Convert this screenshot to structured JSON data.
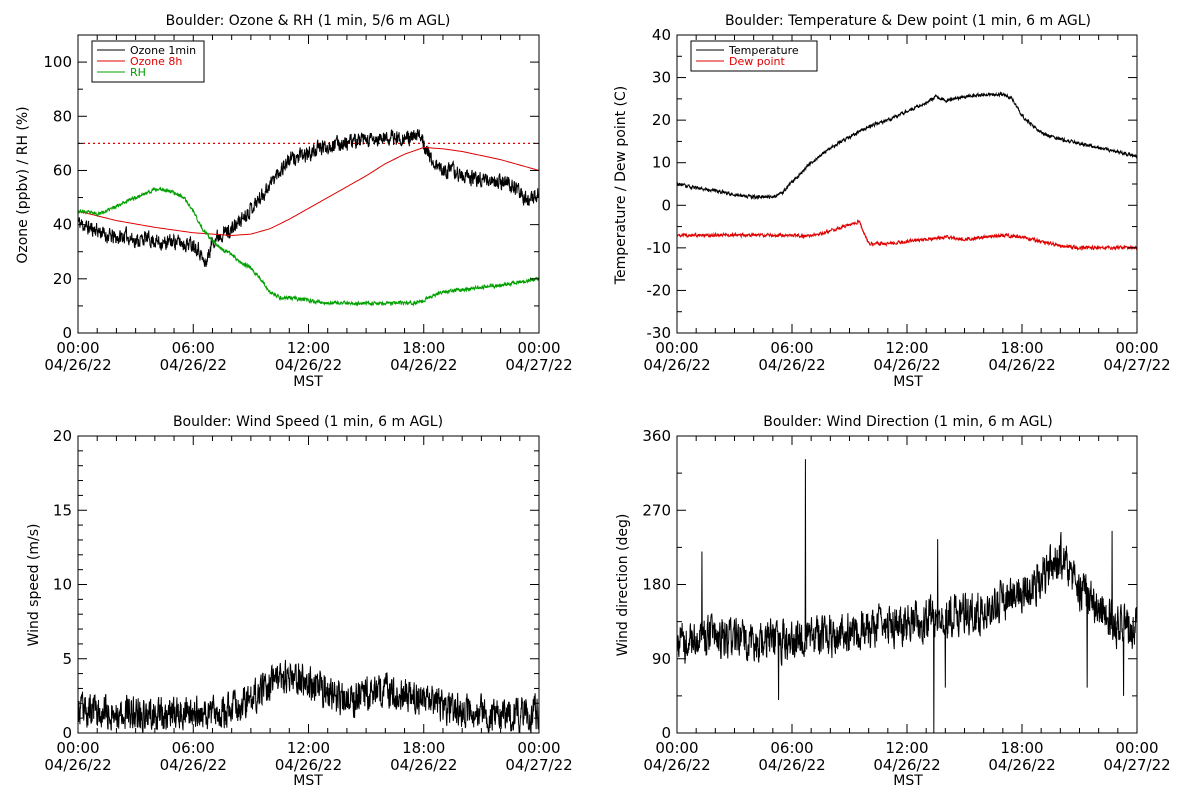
{
  "figure": {
    "xlabel": "MST",
    "x_ticks": [
      {
        "time": "00:00",
        "date": "04/26/22"
      },
      {
        "time": "06:00",
        "date": "04/26/22"
      },
      {
        "time": "12:00",
        "date": "04/26/22"
      },
      {
        "time": "18:00",
        "date": "04/26/22"
      },
      {
        "time": "00:00",
        "date": "04/27/22"
      }
    ]
  },
  "chart_data": [
    {
      "id": "ozone",
      "type": "line",
      "title": "Boulder: Ozone & RH (1 min, 5/6 m AGL)",
      "xlabel": "MST",
      "ylabel": "Ozone (ppbv) / RH (%)",
      "x_unit": "hours since 04/26/22 00:00 MST",
      "xlim": [
        "04/26/22 00:00",
        "04/27/22 00:00"
      ],
      "ylim": [
        0,
        110
      ],
      "yticks": [
        0,
        20,
        40,
        60,
        80,
        100
      ],
      "legend_position": "top-left",
      "reference_lines": [
        {
          "y": 70,
          "color": "#e00000",
          "style": "dotted"
        }
      ],
      "series": [
        {
          "name": "Ozone 1min",
          "color": "#000000",
          "noise": 2.5,
          "seed": 11,
          "x": [
            0,
            0.5,
            1,
            1.5,
            2,
            2.5,
            3,
            3.5,
            4,
            4.5,
            5,
            5.5,
            6,
            6.3,
            6.6,
            6.8,
            7,
            7.5,
            8,
            8.5,
            9,
            9.5,
            10,
            10.5,
            11,
            11.5,
            12,
            12.5,
            13,
            13.5,
            14,
            14.5,
            15,
            15.5,
            16,
            16.5,
            17,
            17.5,
            17.9,
            18.1,
            18.4,
            18.6,
            19,
            19.5,
            20,
            20.5,
            21,
            21.5,
            22,
            22.5,
            23,
            23.5,
            24
          ],
          "y": [
            41,
            39,
            38,
            36,
            35,
            36,
            34,
            35,
            34,
            33,
            34,
            33,
            33,
            31,
            25,
            29,
            34,
            37,
            38,
            42,
            46,
            50,
            55,
            60,
            64,
            65,
            66,
            68,
            69,
            70,
            70,
            71,
            71,
            71,
            72,
            72,
            72,
            72,
            73,
            68,
            64,
            62,
            60,
            60,
            58,
            57,
            57,
            56,
            56,
            55,
            52,
            48,
            52
          ]
        },
        {
          "name": "Ozone 8h",
          "color": "#e00000",
          "noise": 0,
          "seed": 0,
          "x": [
            0,
            2,
            4,
            6,
            8,
            9,
            10,
            11,
            12,
            13,
            14,
            15,
            16,
            17,
            18,
            19,
            20,
            21,
            22,
            23,
            24
          ],
          "y": [
            45,
            41.5,
            39,
            37,
            36,
            36.5,
            38.5,
            42,
            46,
            50,
            54,
            58,
            62.5,
            66,
            68.5,
            68,
            67,
            65.5,
            64,
            62,
            60
          ]
        },
        {
          "name": "RH",
          "color": "#00a000",
          "noise": 0.6,
          "seed": 23,
          "x": [
            0,
            1,
            1.5,
            2,
            3,
            4,
            4.5,
            5,
            5.5,
            6,
            6.5,
            7,
            7.5,
            8,
            8.5,
            9,
            9.5,
            10,
            10.5,
            11,
            12,
            13,
            14,
            15,
            16,
            17,
            17.5,
            18,
            18.5,
            19,
            20,
            21,
            22,
            23,
            24
          ],
          "y": [
            45,
            44,
            45,
            47,
            50,
            53,
            53,
            52,
            50,
            45,
            38,
            34,
            31,
            29,
            26,
            24,
            20,
            15,
            13,
            13,
            12,
            11,
            11,
            11,
            11,
            11,
            11,
            12,
            14,
            15,
            16,
            17,
            17.5,
            19,
            20
          ]
        }
      ]
    },
    {
      "id": "temperature",
      "type": "line",
      "title": "Boulder: Temperature & Dew point (1 min, 6 m AGL)",
      "xlabel": "MST",
      "ylabel": "Temperature / Dew point (C)",
      "x_unit": "hours since 04/26/22 00:00 MST",
      "xlim": [
        "04/26/22 00:00",
        "04/27/22 00:00"
      ],
      "ylim": [
        -30,
        40
      ],
      "yticks": [
        -30,
        -20,
        -10,
        0,
        10,
        20,
        30,
        40
      ],
      "legend_position": "top-left",
      "reference_lines": [],
      "series": [
        {
          "name": "Temperature",
          "color": "#000000",
          "noise": 0.35,
          "seed": 31,
          "x": [
            0,
            1,
            2,
            3,
            4,
            5,
            5.5,
            6,
            7,
            8,
            9,
            10,
            11,
            12,
            13,
            13.5,
            14,
            15,
            16,
            17,
            17.5,
            18,
            19,
            20,
            21,
            22,
            23,
            24
          ],
          "y": [
            5,
            4,
            3.5,
            2.5,
            2,
            2,
            3,
            5.5,
            10,
            13.5,
            16,
            18.5,
            20,
            22,
            24,
            25.5,
            24.5,
            25.5,
            26,
            26,
            25,
            21,
            17,
            15.5,
            14.5,
            13.5,
            12.5,
            11.5
          ]
        },
        {
          "name": "Dew point",
          "color": "#e00000",
          "noise": 0.35,
          "seed": 47,
          "x": [
            0,
            2,
            4,
            6,
            7,
            8,
            9,
            9.5,
            9.7,
            10,
            11,
            12,
            13,
            14,
            15,
            16,
            17,
            18,
            19,
            20,
            21,
            22,
            23,
            24
          ],
          "y": [
            -7,
            -7,
            -7,
            -7,
            -7.2,
            -6,
            -4.5,
            -3.8,
            -6,
            -9,
            -9,
            -8.5,
            -8,
            -7.5,
            -8,
            -7.5,
            -7,
            -7.5,
            -8.5,
            -9.5,
            -10,
            -10,
            -10,
            -10
          ]
        }
      ]
    },
    {
      "id": "wind_speed",
      "type": "line",
      "title": "Boulder: Wind Speed (1 min, 6 m AGL)",
      "xlabel": "MST",
      "ylabel": "Wind speed (m/s)",
      "x_unit": "hours since 04/26/22 00:00 MST",
      "xlim": [
        "04/26/22 00:00",
        "04/27/22 00:00"
      ],
      "ylim": [
        0,
        20
      ],
      "yticks": [
        0,
        5,
        10,
        15,
        20
      ],
      "legend_position": "none",
      "reference_lines": [],
      "series": [
        {
          "name": "",
          "color": "#000000",
          "noise": 1.0,
          "seed": 53,
          "min": 0,
          "x": [
            0,
            2,
            4,
            6,
            8,
            9,
            10,
            11,
            12,
            13,
            14,
            15,
            16,
            17,
            18,
            19,
            20,
            21,
            22,
            23,
            24
          ],
          "y": [
            1.5,
            1.4,
            1.3,
            1.2,
            1.6,
            2.3,
            3.4,
            3.9,
            3.5,
            2.7,
            2.0,
            2.6,
            2.9,
            2.5,
            2.1,
            1.8,
            1.5,
            1.3,
            1.2,
            1.3,
            1.3
          ]
        }
      ]
    },
    {
      "id": "wind_direction",
      "type": "line",
      "title": "Boulder: Wind Direction (1 min, 6 m AGL)",
      "xlabel": "MST",
      "ylabel": "Wind direction (deg)",
      "x_unit": "hours since 04/26/22 00:00 MST",
      "xlim": [
        "04/26/22 00:00",
        "04/27/22 00:00"
      ],
      "ylim": [
        0,
        360
      ],
      "yticks": [
        0,
        90,
        180,
        270,
        360
      ],
      "legend_position": "none",
      "reference_lines": [],
      "series": [
        {
          "name": "",
          "color": "#000000",
          "noise": 22,
          "seed": 71,
          "min": 0,
          "spikes": [
            [
              6.7,
              332
            ],
            [
              13.4,
              0
            ],
            [
              13.6,
              235
            ],
            [
              5.3,
              40
            ],
            [
              21.4,
              55
            ],
            [
              23.3,
              45
            ],
            [
              1.3,
              220
            ],
            [
              22.7,
              245
            ],
            [
              14,
              55
            ]
          ],
          "x": [
            0,
            2,
            4,
            6,
            8,
            10,
            12,
            14,
            16,
            18,
            19,
            20,
            21,
            22,
            23,
            24
          ],
          "y": [
            110,
            118,
            110,
            112,
            118,
            128,
            135,
            140,
            150,
            170,
            190,
            215,
            175,
            148,
            130,
            128
          ]
        }
      ]
    }
  ]
}
